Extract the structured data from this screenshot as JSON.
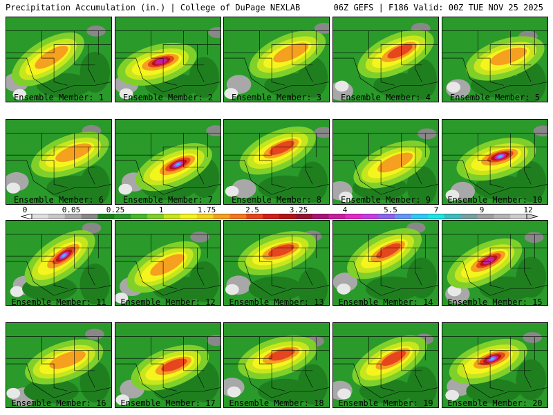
{
  "header": {
    "left_title": "Precipitation Accumulation (in.) | College of DuPage NEXLAB",
    "right_title": "06Z GEFS | F186 Valid: 00Z TUE NOV 25 2025"
  },
  "colorbar": {
    "tick_labels": [
      "0",
      "0.05",
      "0.25",
      "1",
      "1.75",
      "2.5",
      "3.25",
      "4",
      "5.5",
      "7",
      "9",
      "12"
    ],
    "colors": [
      "#e0e0e0",
      "#c8c8c8",
      "#a8a8a8",
      "#888888",
      "#1f7f1f",
      "#2a9a2a",
      "#47b82a",
      "#7fd02a",
      "#c8e61e",
      "#f5f51e",
      "#f5d21e",
      "#f5a01e",
      "#f5781e",
      "#e6461e",
      "#d21e1e",
      "#b41414",
      "#961432",
      "#aa1478",
      "#c81ea0",
      "#e628c8",
      "#c83ce6",
      "#8c64f0",
      "#6496f5",
      "#32c8f5",
      "#1ee6e6",
      "#3cbebe",
      "#78a0a0",
      "#a0a0a0",
      "#b4b4b4",
      "#cccccc"
    ]
  },
  "panels": [
    {
      "label": "Ensemble Member: 1",
      "intensity": 2
    },
    {
      "label": "Ensemble Member: 2",
      "intensity": 4
    },
    {
      "label": "Ensemble Member: 3",
      "intensity": 2
    },
    {
      "label": "Ensemble Member: 4",
      "intensity": 3
    },
    {
      "label": "Ensemble Member: 5",
      "intensity": 2
    },
    {
      "label": "Ensemble Member: 6",
      "intensity": 2
    },
    {
      "label": "Ensemble Member: 7",
      "intensity": 5
    },
    {
      "label": "Ensemble Member: 8",
      "intensity": 3
    },
    {
      "label": "Ensemble Member: 9",
      "intensity": 2
    },
    {
      "label": "Ensemble Member: 10",
      "intensity": 5
    },
    {
      "label": "Ensemble Member: 11",
      "intensity": 5
    },
    {
      "label": "Ensemble Member: 12",
      "intensity": 2
    },
    {
      "label": "Ensemble Member: 13",
      "intensity": 3
    },
    {
      "label": "Ensemble Member: 14",
      "intensity": 3
    },
    {
      "label": "Ensemble Member: 15",
      "intensity": 4
    },
    {
      "label": "Ensemble Member: 16",
      "intensity": 2
    },
    {
      "label": "Ensemble Member: 17",
      "intensity": 3
    },
    {
      "label": "Ensemble Member: 18",
      "intensity": 3
    },
    {
      "label": "Ensemble Member: 19",
      "intensity": 3
    },
    {
      "label": "Ensemble Member: 20",
      "intensity": 5
    }
  ]
}
